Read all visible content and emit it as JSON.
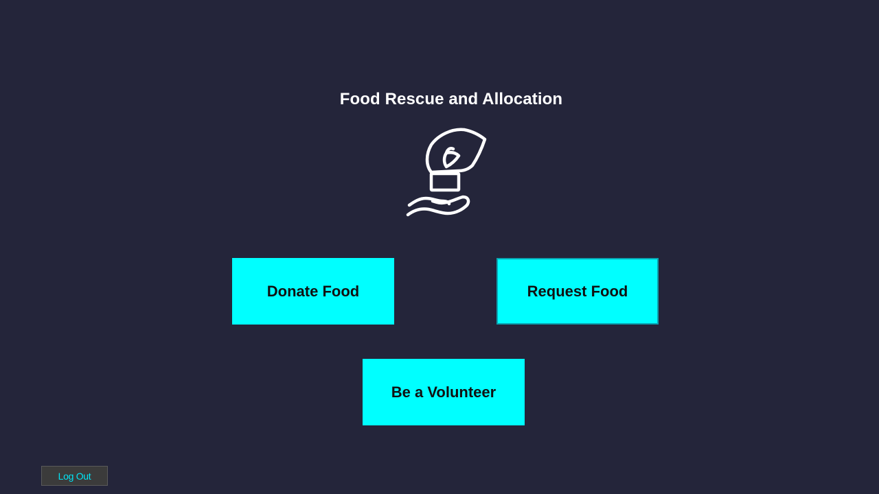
{
  "app": {
    "title": "Food Rescue and Allocation",
    "logo_icon": "hand-giving-food-icon"
  },
  "actions": {
    "donate_label": "Donate Food",
    "request_label": "Request Food",
    "volunteer_label": "Be a Volunteer"
  },
  "footer": {
    "logout_label": "Log Out"
  },
  "colors": {
    "background": "#24253a",
    "button_accent": "#00ffff",
    "logout_text": "#00e5f5"
  }
}
